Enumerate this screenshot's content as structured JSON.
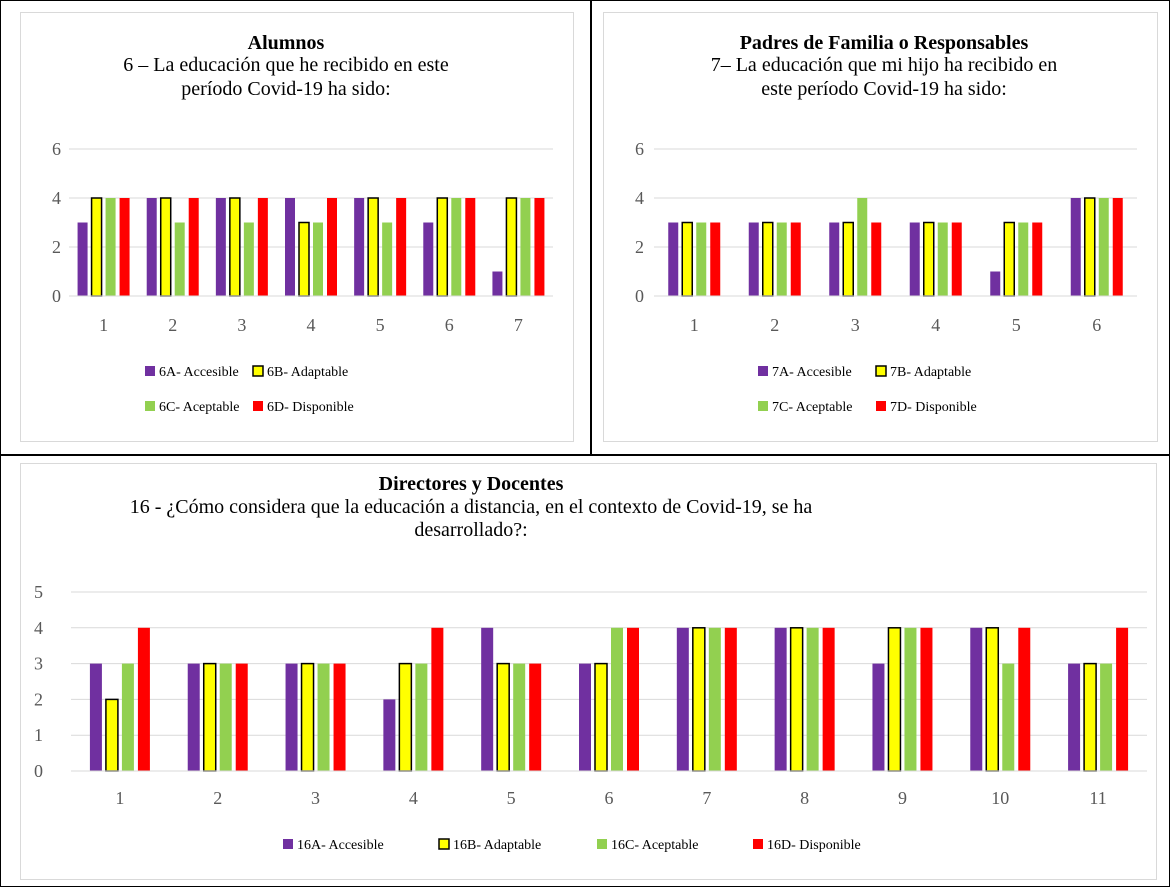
{
  "colors": {
    "A": "#7030a0",
    "B": "#ffff00",
    "B_stroke": "#000000",
    "C": "#92d050",
    "D": "#ff0000",
    "grid": "#d9d9d9",
    "panel_border": "#d9d9d9"
  },
  "chart_data": [
    {
      "type": "bar",
      "title": "Alumnos",
      "subtitle_lines": [
        "6 – La educación que he recibido en este",
        "período Covid-19 ha sido:"
      ],
      "categories": [
        "1",
        "2",
        "3",
        "4",
        "5",
        "6",
        "7"
      ],
      "series": [
        {
          "name": "6A- Accesible",
          "values": [
            3,
            4,
            4,
            4,
            4,
            3,
            1
          ]
        },
        {
          "name": "6B- Adaptable",
          "values": [
            4,
            4,
            4,
            3,
            4,
            4,
            4
          ]
        },
        {
          "name": "6C- Aceptable",
          "values": [
            4,
            3,
            3,
            3,
            3,
            4,
            4
          ]
        },
        {
          "name": "6D- Disponible",
          "values": [
            4,
            4,
            4,
            4,
            4,
            4,
            4
          ]
        }
      ],
      "ylim": [
        0,
        6
      ],
      "yticks": [
        0,
        2,
        4,
        6
      ],
      "grid": true,
      "legend_placement": "bottom"
    },
    {
      "type": "bar",
      "title": "Padres de Familia o Responsables",
      "subtitle_lines": [
        "7– La educación que mi hijo ha recibido en",
        "este período Covid-19 ha sido:"
      ],
      "categories": [
        "1",
        "2",
        "3",
        "4",
        "5",
        "6"
      ],
      "series": [
        {
          "name": "7A- Accesible",
          "values": [
            3,
            3,
            3,
            3,
            1,
            4
          ]
        },
        {
          "name": "7B- Adaptable",
          "values": [
            3,
            3,
            3,
            3,
            3,
            4
          ]
        },
        {
          "name": "7C- Aceptable",
          "values": [
            3,
            3,
            4,
            3,
            3,
            4
          ]
        },
        {
          "name": "7D- Disponible",
          "values": [
            3,
            3,
            3,
            3,
            3,
            4
          ]
        }
      ],
      "ylim": [
        0,
        6
      ],
      "yticks": [
        0,
        2,
        4,
        6
      ],
      "grid": true,
      "legend_placement": "bottom"
    },
    {
      "type": "bar",
      "title": "Directores y Docentes",
      "subtitle_lines": [
        "16 - ¿Cómo considera que la educación a distancia, en el contexto de Covid-19, se ha",
        "desarrollado?:"
      ],
      "categories": [
        "1",
        "2",
        "3",
        "4",
        "5",
        "6",
        "7",
        "8",
        "9",
        "10",
        "11"
      ],
      "series": [
        {
          "name": "16A- Accesible",
          "values": [
            3,
            3,
            3,
            2,
            4,
            3,
            4,
            4,
            3,
            4,
            3
          ]
        },
        {
          "name": "16B- Adaptable",
          "values": [
            2,
            3,
            3,
            3,
            3,
            3,
            4,
            4,
            4,
            4,
            3
          ]
        },
        {
          "name": "16C- Aceptable",
          "values": [
            3,
            3,
            3,
            3,
            3,
            4,
            4,
            4,
            4,
            3,
            3
          ]
        },
        {
          "name": "16D- Disponible",
          "values": [
            4,
            3,
            3,
            4,
            3,
            4,
            4,
            4,
            4,
            4,
            4
          ]
        }
      ],
      "ylim": [
        0,
        5
      ],
      "yticks": [
        0,
        1,
        2,
        3,
        4,
        5
      ],
      "grid": true,
      "legend_placement": "bottom"
    }
  ]
}
